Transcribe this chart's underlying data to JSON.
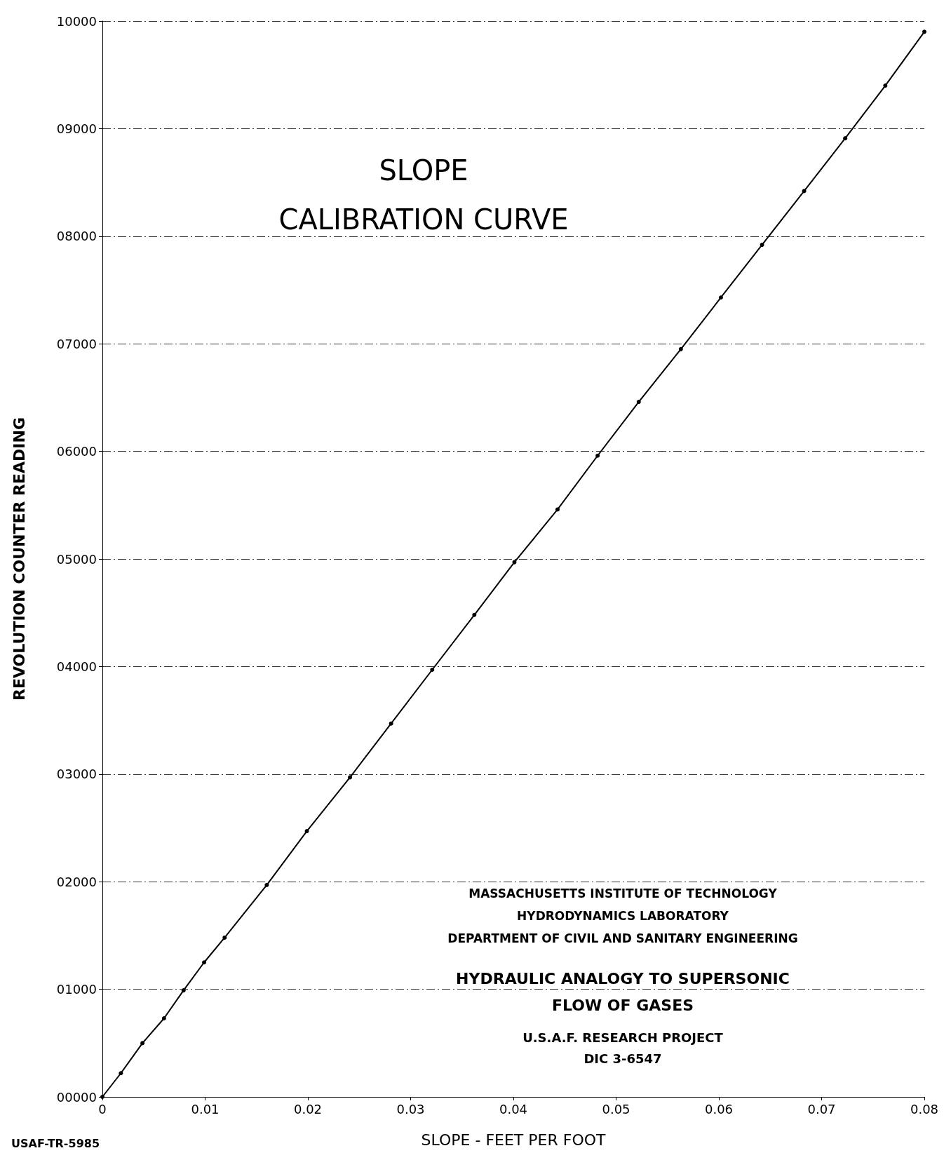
{
  "chart_data": {
    "type": "line",
    "title": "SLOPE\nCALIBRATION CURVE",
    "xlabel": "SLOPE - FEET PER FOOT",
    "ylabel": "REVOLUTION COUNTER READING",
    "x": [
      0,
      0.0018,
      0.0039,
      0.006,
      0.0079,
      0.0099,
      0.0119,
      0.016,
      0.0199,
      0.0241,
      0.0281,
      0.0321,
      0.0362,
      0.0401,
      0.0443,
      0.0482,
      0.0522,
      0.0563,
      0.0602,
      0.0642,
      0.0683,
      0.0723,
      0.0762,
      0.08
    ],
    "series": [
      {
        "color": "#000000",
        "values": [
          0,
          220,
          500,
          730,
          990,
          1250,
          1480,
          1970,
          2470,
          2970,
          3470,
          3970,
          4480,
          4970,
          5460,
          5960,
          6460,
          6950,
          7430,
          7920,
          8420,
          8910,
          9400,
          9900
        ]
      }
    ],
    "xlim": [
      0,
      0.08
    ],
    "xticks": [
      0,
      0.01,
      0.02,
      0.03,
      0.04,
      0.05,
      0.06,
      0.07,
      0.08
    ],
    "ylim": [
      0,
      10000
    ],
    "yticks": [
      {
        "value": 0,
        "label": "00000"
      },
      {
        "value": 1000,
        "label": "01000"
      },
      {
        "value": 2000,
        "label": "02000"
      },
      {
        "value": 3000,
        "label": "03000"
      },
      {
        "value": 4000,
        "label": "04000"
      },
      {
        "value": 5000,
        "label": "05000"
      },
      {
        "value": 6000,
        "label": "06000"
      },
      {
        "value": 7000,
        "label": "07000"
      },
      {
        "value": 8000,
        "label": "08000"
      },
      {
        "value": 9000,
        "label": "09000"
      },
      {
        "value": 10000,
        "label": "10000"
      }
    ],
    "grid": "y",
    "marker": "circle",
    "line_style": "solid",
    "annotations": [
      "MASSACHUSETTS INSTITUTE OF TECHNOLOGY\nHYDRODYNAMICS LABORATORY\nDEPARTMENT OF CIVIL AND SANITARY ENGINEERING",
      "HYDRAULIC ANALOGY TO SUPERSONIC\nFLOW OF GASES",
      "U.S.A.F. RESEARCH PROJECT\nDIC 3-6547",
      "USAF-TR-5985"
    ]
  }
}
